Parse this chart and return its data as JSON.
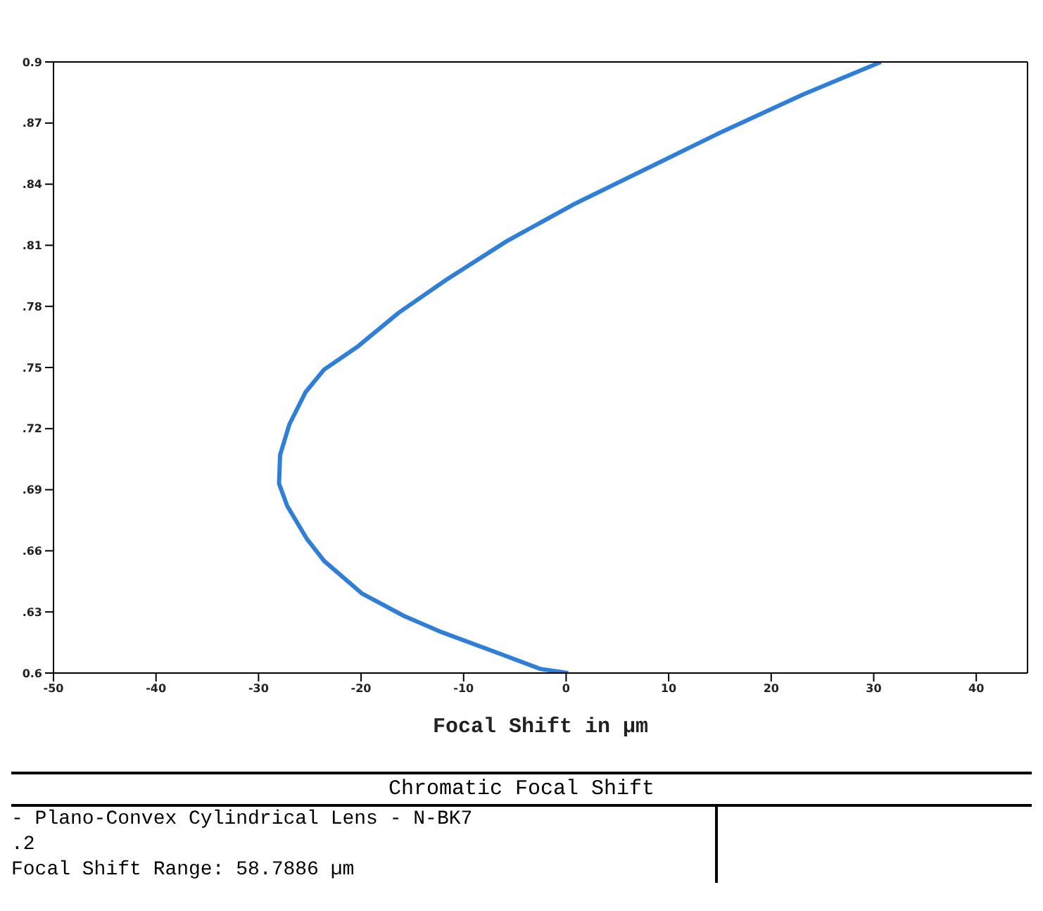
{
  "chart_data": {
    "type": "line",
    "title": "Chromatic Focal Shift",
    "xlabel": "Focal Shift in µm",
    "annotations": [
      "- Plano-Convex Cylindrical Lens - N-BK7",
      ".2",
      "Focal Shift Range: 58.7886 µm"
    ],
    "x": [
      0.2,
      -2.5,
      -6.2,
      -12.1,
      -15.8,
      -19.9,
      -23.6,
      -25.3,
      -27.2,
      -28.0,
      -27.9,
      -27.0,
      -25.4,
      -23.6,
      -20.4,
      -16.3,
      -11.7,
      -5.8,
      0.7,
      8.0,
      14.9,
      23.1,
      30.7
    ],
    "series": [
      {
        "color": "#2f7fd8",
        "values": [
          0.6,
          0.602,
          0.609,
          0.62,
          0.628,
          0.639,
          0.655,
          0.666,
          0.682,
          0.693,
          0.707,
          0.722,
          0.738,
          0.749,
          0.76,
          0.777,
          0.793,
          0.812,
          0.83,
          0.848,
          0.865,
          0.884,
          0.9
        ]
      }
    ],
    "xlim": [
      -50,
      45
    ],
    "xticks": [
      -50,
      -40,
      -30,
      -20,
      -10,
      0,
      10,
      20,
      30,
      40
    ],
    "ylim": [
      0.6,
      0.9
    ],
    "yticks": [
      {
        "value": 0.6,
        "label": "0.6"
      },
      {
        "value": 0.63,
        "label": ".63"
      },
      {
        "value": 0.66,
        "label": ".66"
      },
      {
        "value": 0.69,
        "label": ".69"
      },
      {
        "value": 0.72,
        "label": ".72"
      },
      {
        "value": 0.75,
        "label": ".75"
      },
      {
        "value": 0.78,
        "label": ".78"
      },
      {
        "value": 0.81,
        "label": ".81"
      },
      {
        "value": 0.84,
        "label": ".84"
      },
      {
        "value": 0.87,
        "label": ".87"
      },
      {
        "value": 0.9,
        "label": "0.9"
      }
    ],
    "grid": false,
    "legend": false,
    "marker": "none",
    "line_style": "solid"
  }
}
